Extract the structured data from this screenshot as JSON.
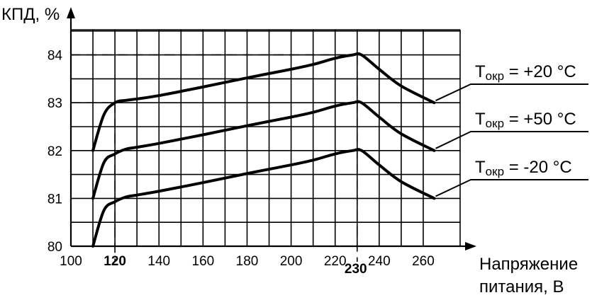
{
  "chart_data": {
    "type": "line",
    "ylabel": "КПД, %",
    "xlabel_line1": "Напряжение",
    "xlabel_line2": "питания, В",
    "xlim": [
      100,
      270
    ],
    "ylim": [
      80,
      85
    ],
    "grid": true,
    "x_ticks": [
      100,
      120,
      140,
      160,
      180,
      200,
      220,
      240,
      260
    ],
    "y_ticks": [
      80,
      81,
      82,
      83,
      84
    ],
    "highlight_x_ticks": [
      120,
      230
    ],
    "highlight_x_label": "230",
    "reference_lines": [
      {
        "x": 120,
        "y": 83
      },
      {
        "x": 230,
        "y": 84
      }
    ],
    "series": [
      {
        "name": "Tокр = +20 °C",
        "label_main": "T",
        "label_sub": "окр",
        "label_rest": " = +20 °C",
        "x": [
          110,
          115,
          120,
          125,
          130,
          140,
          160,
          180,
          200,
          210,
          220,
          228,
          232,
          240,
          250,
          265
        ],
        "y": [
          82.0,
          82.75,
          83.0,
          83.05,
          83.08,
          83.15,
          83.33,
          83.52,
          83.7,
          83.8,
          83.93,
          84.0,
          84.0,
          83.7,
          83.35,
          83.0
        ]
      },
      {
        "name": "Tокр = +50 °C",
        "label_main": "T",
        "label_sub": "окр",
        "label_rest": " = +50 °C",
        "x": [
          110,
          115,
          120,
          125,
          130,
          140,
          160,
          180,
          200,
          210,
          220,
          228,
          232,
          240,
          250,
          265
        ],
        "y": [
          81.0,
          81.75,
          81.93,
          82.03,
          82.07,
          82.15,
          82.33,
          82.52,
          82.7,
          82.8,
          82.93,
          83.0,
          83.0,
          82.7,
          82.35,
          82.0
        ]
      },
      {
        "name": "Tокр = -20 °C",
        "label_main": "T",
        "label_sub": "окр",
        "label_rest": " = -20 °C",
        "x": [
          110,
          115,
          120,
          125,
          130,
          140,
          160,
          180,
          200,
          210,
          220,
          228,
          232,
          240,
          250,
          265
        ],
        "y": [
          80.0,
          80.75,
          80.93,
          81.03,
          81.07,
          81.15,
          81.33,
          81.52,
          81.7,
          81.8,
          81.93,
          82.0,
          82.0,
          81.7,
          81.35,
          81.0
        ]
      }
    ]
  }
}
